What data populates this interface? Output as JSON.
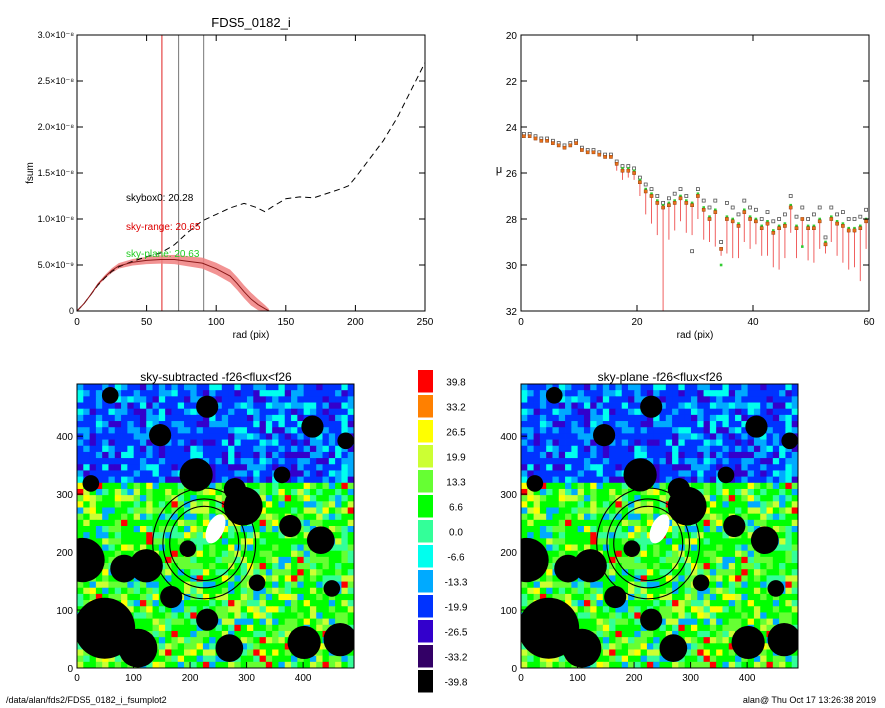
{
  "footer": {
    "path": "/data/alan/fds2/FDS5_0182_i_fsumplot2",
    "user_time": "alan@  Thu Oct 17 13:26:38 2019"
  },
  "chart_data": [
    {
      "id": "fsum",
      "type": "line",
      "title": "FDS5_0182_i",
      "xlabel": "rad (pix)",
      "ylabel": "fsum",
      "xlim": [
        0,
        250
      ],
      "ylim": [
        0,
        3e-08
      ],
      "xticks": [
        "0",
        "50",
        "100",
        "150",
        "200",
        "250"
      ],
      "yticks": [
        "0",
        "5.0×10⁻⁹",
        "1.0×10⁻⁸",
        "1.5×10⁻⁸",
        "2.0×10⁻⁸",
        "2.5×10⁻⁸",
        "3.0×10⁻⁸"
      ],
      "annotations": [
        {
          "text": "skybox0: 20.28",
          "color": "#000000"
        },
        {
          "text": "sky-range: 20.65",
          "color": "#dd0000"
        },
        {
          "text": "sky-plane: 20.63",
          "color": "#22cc22"
        }
      ],
      "vlines": [
        {
          "x": 61,
          "color": "#e02020"
        },
        {
          "x": 73,
          "color": "#777777"
        },
        {
          "x": 91,
          "color": "#777777"
        }
      ],
      "series": [
        {
          "style": "dashed",
          "color": "#000000",
          "x": [
            0,
            5,
            10,
            15,
            20,
            25,
            30,
            40,
            50,
            60,
            70,
            80,
            90,
            100,
            110,
            120,
            128,
            135,
            140,
            150,
            160,
            170,
            180,
            190,
            195,
            200,
            210,
            220,
            230,
            240,
            250
          ],
          "y": [
            0,
            8e-10,
            1.8e-09,
            2.8e-09,
            3.6e-09,
            4.3e-09,
            4.8e-09,
            5.4e-09,
            5.9e-09,
            6.3e-09,
            7.2e-09,
            8.6e-09,
            9.8e-09,
            1.05e-08,
            1.12e-08,
            1.17e-08,
            1.13e-08,
            1.08e-08,
            1.13e-08,
            1.22e-08,
            1.24e-08,
            1.23e-08,
            1.28e-08,
            1.33e-08,
            1.36e-08,
            1.45e-08,
            1.65e-08,
            1.85e-08,
            2.1e-08,
            2.4e-08,
            2.7e-08
          ]
        },
        {
          "style": "solid",
          "color": "#8b1a1a",
          "band_color": "#f08080",
          "x": [
            0,
            5,
            10,
            15,
            20,
            25,
            30,
            40,
            50,
            60,
            70,
            80,
            90,
            100,
            110,
            115,
            120,
            125,
            130,
            135,
            138
          ],
          "y": [
            0,
            8e-10,
            1.8e-09,
            2.9e-09,
            3.7e-09,
            4.4e-09,
            4.9e-09,
            5.3e-09,
            5.5e-09,
            5.6e-09,
            5.6e-09,
            5.4e-09,
            5.2e-09,
            4.6e-09,
            3.8e-09,
            3e-09,
            2.1e-09,
            1.3e-09,
            7e-10,
            2.5e-10,
            0
          ],
          "err": [
            0,
            5e-11,
            1e-10,
            1.5e-10,
            2e-10,
            2.5e-10,
            3e-10,
            3.5e-10,
            4e-10,
            4.5e-10,
            5e-10,
            5.5e-10,
            6e-10,
            6.5e-10,
            7e-10,
            7e-10,
            7e-10,
            7e-10,
            6e-10,
            4e-10,
            2e-10
          ]
        }
      ]
    },
    {
      "id": "mu",
      "type": "scatter",
      "xlabel": "rad (pix)",
      "ylabel": "μ",
      "xlim": [
        0,
        60
      ],
      "ylim": [
        32,
        20
      ],
      "xticks": [
        "0",
        "20",
        "40",
        "60"
      ],
      "yticks": [
        "20",
        "22",
        "24",
        "26",
        "28",
        "30",
        "32"
      ],
      "series": [
        {
          "marker": "orange-square",
          "color": "#e8701a",
          "x": [
            0.5,
            1.5,
            2.5,
            3.5,
            4.5,
            5.5,
            6.5,
            7.5,
            8.5,
            9.5,
            10.5,
            11.5,
            12.5,
            13.5,
            14.5,
            15.5,
            16.5,
            17.5,
            18.5,
            19.5,
            20.5,
            21.5,
            22.5,
            23.5,
            24.5,
            25.5,
            26.5,
            27.5,
            28.5,
            29.5,
            30.5,
            31.5,
            32.5,
            33.5,
            34.5,
            35.5,
            36.5,
            37.5,
            38.5,
            39.5,
            40.5,
            41.5,
            42.5,
            43.5,
            44.5,
            45.5,
            46.5,
            47.5,
            48.5,
            49.5,
            50.5,
            51.5,
            52.5,
            53.5,
            54.5,
            55.5,
            56.5,
            57.5,
            58.5,
            59.5
          ],
          "y": [
            24.4,
            24.4,
            24.5,
            24.6,
            24.6,
            24.7,
            24.8,
            24.9,
            24.8,
            24.7,
            25.0,
            25.1,
            25.1,
            25.2,
            25.3,
            25.3,
            25.6,
            25.9,
            25.9,
            26.0,
            26.4,
            26.8,
            27.0,
            27.3,
            27.5,
            27.4,
            27.3,
            27.1,
            27.3,
            27.4,
            27.0,
            27.6,
            28.0,
            27.7,
            29.3,
            28.0,
            28.1,
            28.3,
            27.7,
            28.0,
            28.1,
            28.4,
            28.2,
            28.6,
            28.4,
            28.3,
            27.5,
            28.4,
            28.0,
            28.4,
            28.4,
            28.1,
            29.1,
            28.0,
            28.2,
            28.3,
            28.5,
            28.5,
            28.4,
            28.1
          ],
          "err_low": [
            0,
            0,
            0,
            0,
            0,
            0,
            0,
            0,
            0,
            0,
            0,
            0,
            0,
            0,
            0,
            0,
            0.3,
            0.4,
            0.3,
            0.3,
            0.6,
            1.0,
            1.2,
            1.4,
            4.5,
            1.5,
            1.2,
            1.0,
            1.3,
            1.3,
            1.0,
            1.3,
            1.0,
            1.5,
            0.3,
            1.5,
            1.6,
            1.4,
            1.3,
            1.3,
            1.0,
            1.2,
            1.4,
            1.5,
            1.8,
            1.4,
            1.1,
            1.3,
            1.2,
            1.4,
            1.5,
            1.2,
            0.4,
            1.0,
            1.4,
            1.6,
            1.7,
            1.6,
            2.3,
            1.2
          ]
        },
        {
          "marker": "gray-open-square",
          "color": "#555555",
          "x": [
            0.5,
            1.5,
            2.5,
            3.5,
            4.5,
            5.5,
            6.5,
            7.5,
            8.5,
            9.5,
            10.5,
            11.5,
            12.5,
            13.5,
            14.5,
            15.5,
            16.5,
            17.5,
            18.5,
            19.5,
            20.5,
            21.5,
            22.5,
            23.5,
            24.5,
            25.5,
            26.5,
            27.5,
            28.5,
            29.5,
            30.5,
            31.5,
            32.5,
            33.5,
            34.5,
            35.5,
            36.5,
            37.5,
            38.5,
            39.5,
            40.5,
            41.5,
            42.5,
            43.5,
            44.5,
            45.5,
            46.5,
            47.5,
            48.5,
            49.5,
            50.5,
            51.5,
            52.5,
            53.5,
            54.5,
            55.5,
            56.5,
            57.5,
            58.5,
            59.5
          ],
          "y": [
            24.3,
            24.3,
            24.4,
            24.5,
            24.5,
            24.6,
            24.7,
            24.8,
            24.7,
            24.6,
            24.9,
            25.0,
            25.0,
            25.1,
            25.2,
            25.2,
            25.5,
            25.7,
            25.7,
            25.8,
            26.2,
            26.5,
            26.7,
            27.0,
            27.3,
            27.1,
            26.9,
            26.7,
            27.0,
            29.4,
            26.7,
            27.2,
            27.5,
            27.2,
            29.0,
            27.3,
            27.5,
            27.8,
            27.2,
            27.5,
            27.6,
            28.0,
            27.7,
            28.1,
            28.0,
            27.8,
            27.0,
            27.9,
            27.5,
            28.0,
            27.8,
            27.5,
            28.8,
            27.5,
            27.8,
            27.7,
            28.0,
            28.0,
            27.9,
            27.6
          ]
        },
        {
          "marker": "green-square",
          "color": "#33cc33",
          "x": [
            0.5,
            1.5,
            2.5,
            3.5,
            4.5,
            5.5,
            6.5,
            7.5,
            8.5,
            9.5,
            10.5,
            11.5,
            12.5,
            13.5,
            14.5,
            15.5,
            16.5,
            17.5,
            18.5,
            19.5,
            20.5,
            21.5,
            22.5,
            23.5,
            24.5,
            25.5,
            26.5,
            27.5,
            28.5,
            29.5,
            30.5,
            31.5,
            32.5,
            33.5,
            34.5,
            35.5,
            36.5,
            37.5,
            38.5,
            39.5,
            40.5,
            41.5,
            42.5,
            43.5,
            44.5,
            45.5,
            46.5,
            47.5,
            48.5,
            49.5,
            50.5,
            51.5,
            52.5,
            53.5,
            54.5,
            55.5,
            56.5,
            57.5,
            58.5,
            59.5
          ],
          "y": [
            24.4,
            24.4,
            24.5,
            24.6,
            24.6,
            24.7,
            24.8,
            24.9,
            24.8,
            24.7,
            25.0,
            25.1,
            25.1,
            25.2,
            25.3,
            25.3,
            25.6,
            25.8,
            25.8,
            25.9,
            26.3,
            26.7,
            26.9,
            27.2,
            27.4,
            27.3,
            27.2,
            27.0,
            27.2,
            27.3,
            26.9,
            27.5,
            27.9,
            27.6,
            30.0,
            27.9,
            28.0,
            28.2,
            27.6,
            27.9,
            28.0,
            28.3,
            28.1,
            28.5,
            28.3,
            28.2,
            27.4,
            28.3,
            29.2,
            28.3,
            28.3,
            28.0,
            29.0,
            27.9,
            28.1,
            28.2,
            28.4,
            28.4,
            28.3,
            28.0
          ]
        }
      ]
    },
    {
      "id": "img1",
      "type": "heatmap",
      "title": "sky-subtracted -f26<flux<f26",
      "xlim": [
        0,
        490
      ],
      "ylim": [
        0,
        490
      ],
      "xticks": [
        "0",
        "100",
        "200",
        "300",
        "400"
      ],
      "yticks": [
        "0",
        "100",
        "200",
        "300",
        "400"
      ],
      "aperture_center": [
        225,
        215
      ],
      "aperture_radii": [
        61,
        73,
        91
      ],
      "seed": 7
    },
    {
      "id": "img2",
      "type": "heatmap",
      "title": "sky-plane -f26<flux<f26",
      "xlim": [
        0,
        490
      ],
      "ylim": [
        0,
        490
      ],
      "xticks": [
        "0",
        "100",
        "200",
        "300",
        "400"
      ],
      "yticks": [
        "0",
        "100",
        "200",
        "300",
        "400"
      ],
      "aperture_center": [
        225,
        215
      ],
      "aperture_radii": [
        61,
        73,
        91
      ],
      "seed": 7
    },
    {
      "id": "colorbar",
      "type": "colorbar",
      "levels": [
        "39.8",
        "33.2",
        "26.5",
        "19.9",
        "13.3",
        "6.6",
        "0.0",
        "-6.6",
        "-13.3",
        "-19.9",
        "-26.5",
        "-33.2",
        "-39.8"
      ],
      "colors": [
        "#ff0000",
        "#ff8000",
        "#ffff00",
        "#ccff33",
        "#66ff33",
        "#00ff00",
        "#33ff99",
        "#00ffee",
        "#00aaff",
        "#0033ff",
        "#3300cc",
        "#330066",
        "#000000"
      ]
    }
  ]
}
